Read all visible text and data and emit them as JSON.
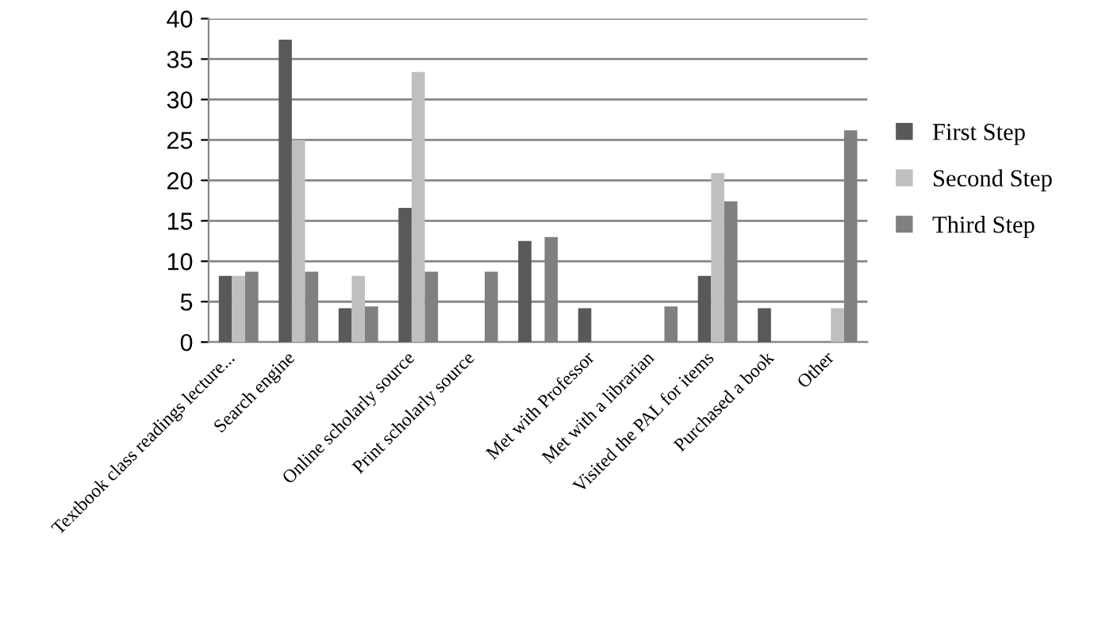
{
  "chart_data": {
    "type": "bar",
    "categories": [
      "Textbook class readings lecture...",
      "Search engine",
      null,
      "Online scholarly source",
      "Print scholarly source",
      null,
      "Met with Professor",
      "Met with a librarian",
      "Visited the PAL for items",
      "Purchased a book",
      "Other"
    ],
    "series": [
      {
        "name": "First Step",
        "color": "#595959",
        "values": [
          8.2,
          37.4,
          4.2,
          16.6,
          0,
          12.5,
          4.2,
          0,
          8.2,
          4.2,
          0
        ]
      },
      {
        "name": "Second Step",
        "color": "#bfbfbf",
        "values": [
          8.2,
          25,
          8.2,
          33.4,
          0,
          0,
          0,
          0,
          20.9,
          0,
          4.2
        ]
      },
      {
        "name": "Third Step",
        "color": "#808080",
        "values": [
          8.7,
          8.7,
          4.4,
          8.7,
          8.7,
          13,
          0,
          4.4,
          17.4,
          0,
          26.2
        ]
      }
    ],
    "ylim": [
      0,
      40
    ],
    "yticks": [
      0,
      5,
      10,
      15,
      20,
      25,
      30,
      35,
      40
    ],
    "grid": "y",
    "legend": "right"
  }
}
